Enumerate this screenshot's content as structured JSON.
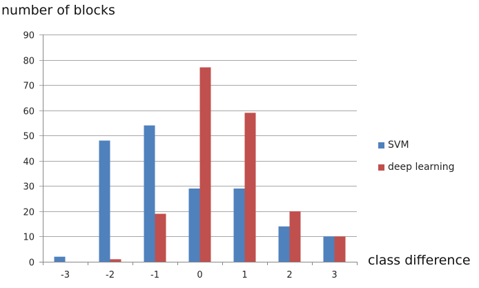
{
  "chart_data": {
    "type": "bar",
    "ylabel": "number of blocks",
    "xlabel": "class difference",
    "categories": [
      "-3",
      "-2",
      "-1",
      "0",
      "1",
      "2",
      "3"
    ],
    "series": [
      {
        "name": "SVM",
        "color": "#4f81bd",
        "values": [
          2,
          48,
          54,
          29,
          29,
          14,
          10
        ]
      },
      {
        "name": "deep learning",
        "color": "#c0504d",
        "values": [
          0,
          1,
          19,
          77,
          59,
          20,
          10
        ]
      }
    ],
    "ylim": [
      0,
      90
    ],
    "yticks": [
      0,
      10,
      20,
      30,
      40,
      50,
      60,
      70,
      80,
      90
    ],
    "grid": true,
    "legend_position": "right"
  }
}
